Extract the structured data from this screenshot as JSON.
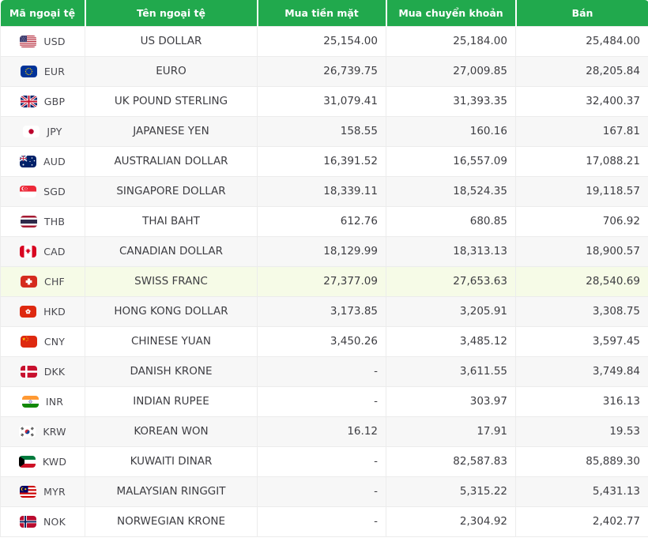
{
  "colors": {
    "header_bg": "#21a94d",
    "header_text": "#ffffff",
    "row_alt": "#f7f7f7",
    "row_highlight": "#f6fbe7",
    "border": "#ececec",
    "text": "#3d3d42"
  },
  "table": {
    "headers": [
      "Mã ngoại tệ",
      "Tên ngoại tệ",
      "Mua tiền mặt",
      "Mua chuyển khoản",
      "Bán"
    ],
    "rows": [
      {
        "code": "USD",
        "flag": "us",
        "name": "US DOLLAR",
        "cash_buy": "25,154.00",
        "transfer_buy": "25,184.00",
        "sell": "25,484.00",
        "highlight": false
      },
      {
        "code": "EUR",
        "flag": "eu",
        "name": "EURO",
        "cash_buy": "26,739.75",
        "transfer_buy": "27,009.85",
        "sell": "28,205.84",
        "highlight": false
      },
      {
        "code": "GBP",
        "flag": "gb",
        "name": "UK POUND STERLING",
        "cash_buy": "31,079.41",
        "transfer_buy": "31,393.35",
        "sell": "32,400.37",
        "highlight": false
      },
      {
        "code": "JPY",
        "flag": "jp",
        "name": "JAPANESE YEN",
        "cash_buy": "158.55",
        "transfer_buy": "160.16",
        "sell": "167.81",
        "highlight": false
      },
      {
        "code": "AUD",
        "flag": "au",
        "name": "AUSTRALIAN DOLLAR",
        "cash_buy": "16,391.52",
        "transfer_buy": "16,557.09",
        "sell": "17,088.21",
        "highlight": false
      },
      {
        "code": "SGD",
        "flag": "sg",
        "name": "SINGAPORE DOLLAR",
        "cash_buy": "18,339.11",
        "transfer_buy": "18,524.35",
        "sell": "19,118.57",
        "highlight": false
      },
      {
        "code": "THB",
        "flag": "th",
        "name": "THAI BAHT",
        "cash_buy": "612.76",
        "transfer_buy": "680.85",
        "sell": "706.92",
        "highlight": false
      },
      {
        "code": "CAD",
        "flag": "ca",
        "name": "CANADIAN DOLLAR",
        "cash_buy": "18,129.99",
        "transfer_buy": "18,313.13",
        "sell": "18,900.57",
        "highlight": false
      },
      {
        "code": "CHF",
        "flag": "ch",
        "name": "SWISS FRANC",
        "cash_buy": "27,377.09",
        "transfer_buy": "27,653.63",
        "sell": "28,540.69",
        "highlight": true
      },
      {
        "code": "HKD",
        "flag": "hk",
        "name": "HONG KONG DOLLAR",
        "cash_buy": "3,173.85",
        "transfer_buy": "3,205.91",
        "sell": "3,308.75",
        "highlight": false
      },
      {
        "code": "CNY",
        "flag": "cn",
        "name": "CHINESE YUAN",
        "cash_buy": "3,450.26",
        "transfer_buy": "3,485.12",
        "sell": "3,597.45",
        "highlight": false
      },
      {
        "code": "DKK",
        "flag": "dk",
        "name": "DANISH KRONE",
        "cash_buy": "-",
        "transfer_buy": "3,611.55",
        "sell": "3,749.84",
        "highlight": false
      },
      {
        "code": "INR",
        "flag": "in",
        "name": "INDIAN RUPEE",
        "cash_buy": "-",
        "transfer_buy": "303.97",
        "sell": "316.13",
        "highlight": false
      },
      {
        "code": "KRW",
        "flag": "kr",
        "name": "KOREAN WON",
        "cash_buy": "16.12",
        "transfer_buy": "17.91",
        "sell": "19.53",
        "highlight": false
      },
      {
        "code": "KWD",
        "flag": "kw",
        "name": "KUWAITI DINAR",
        "cash_buy": "-",
        "transfer_buy": "82,587.83",
        "sell": "85,889.30",
        "highlight": false
      },
      {
        "code": "MYR",
        "flag": "my",
        "name": "MALAYSIAN RINGGIT",
        "cash_buy": "-",
        "transfer_buy": "5,315.22",
        "sell": "5,431.13",
        "highlight": false
      },
      {
        "code": "NOK",
        "flag": "no",
        "name": "NORWEGIAN KRONE",
        "cash_buy": "-",
        "transfer_buy": "2,304.92",
        "sell": "2,402.77",
        "highlight": false
      }
    ]
  }
}
